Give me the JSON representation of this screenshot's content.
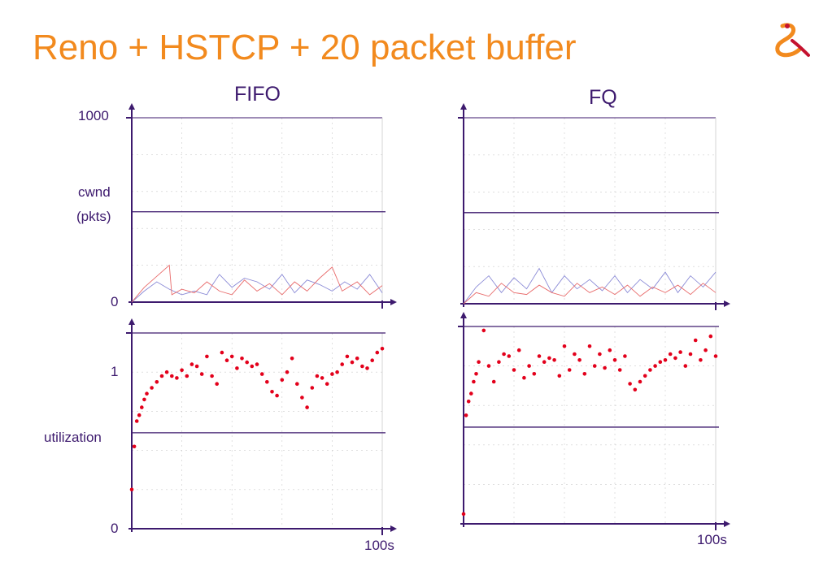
{
  "title": "Reno + HSTCP + 20 packet buffer",
  "colors": {
    "title": "#f28a1e",
    "axis": "#3d1a6e",
    "hstcp_cwnd": "#8a8ad6",
    "reno_cwnd": "#e86a6a",
    "utilization": "#e3001b",
    "grid": "#cccccc"
  },
  "labels": {
    "fifo": "FIFO",
    "fq": "FQ",
    "cwnd_top": "1000",
    "cwnd_zero": "0",
    "cwnd_axis": "cwnd",
    "cwnd_unit": "(pkts)",
    "util_one": "1",
    "util_zero": "0",
    "util_axis": "utilization",
    "time_end_left": "100s",
    "time_end_right": "100s"
  },
  "chart_data": [
    {
      "id": "fifo-cwnd",
      "type": "line",
      "title": "FIFO",
      "ylabel": "cwnd (pkts)",
      "xlim": [
        0,
        100
      ],
      "ylim": [
        0,
        1000
      ],
      "grid": true,
      "reference_line": 490,
      "series": [
        {
          "x": [
            0,
            5,
            10,
            15,
            20,
            25,
            30,
            32,
            35,
            40,
            45,
            50,
            55,
            60,
            65,
            70,
            75,
            80,
            85,
            90,
            95,
            100
          ],
          "y": [
            0,
            60,
            110,
            70,
            40,
            60,
            40,
            90,
            150,
            80,
            130,
            110,
            70,
            150,
            50,
            120,
            95,
            60,
            110,
            70,
            150,
            50
          ]
        },
        {
          "x": [
            0,
            5,
            10,
            15,
            16,
            20,
            25,
            30,
            35,
            40,
            45,
            50,
            55,
            60,
            65,
            70,
            75,
            80,
            84,
            90,
            95,
            100
          ],
          "y": [
            0,
            80,
            140,
            200,
            40,
            70,
            50,
            110,
            60,
            40,
            120,
            60,
            100,
            40,
            110,
            60,
            130,
            190,
            60,
            110,
            40,
            90
          ]
        }
      ]
    },
    {
      "id": "fq-cwnd",
      "type": "line",
      "title": "FQ",
      "ylabel": "cwnd (pkts)",
      "xlim": [
        0,
        100
      ],
      "ylim": [
        0,
        1000
      ],
      "grid": true,
      "reference_line": 490,
      "series": [
        {
          "x": [
            0,
            5,
            10,
            15,
            20,
            25,
            30,
            35,
            40,
            45,
            50,
            55,
            60,
            65,
            70,
            75,
            80,
            85,
            90,
            95,
            100
          ],
          "y": [
            0,
            90,
            150,
            60,
            140,
            80,
            190,
            60,
            150,
            80,
            130,
            70,
            150,
            60,
            130,
            80,
            170,
            60,
            150,
            90,
            170
          ]
        },
        {
          "x": [
            0,
            5,
            10,
            15,
            20,
            25,
            30,
            35,
            40,
            45,
            50,
            55,
            60,
            65,
            70,
            75,
            80,
            85,
            90,
            95,
            100
          ],
          "y": [
            0,
            60,
            40,
            110,
            60,
            50,
            100,
            60,
            40,
            110,
            60,
            90,
            50,
            100,
            40,
            90,
            60,
            100,
            50,
            110,
            60
          ]
        }
      ]
    },
    {
      "id": "fifo-util",
      "type": "scatter",
      "ylabel": "utilization",
      "xlim": [
        0,
        100
      ],
      "ylim": [
        0,
        1
      ],
      "grid": true,
      "reference_lines": [
        1,
        0.49
      ],
      "series": [
        {
          "x": [
            0,
            1,
            2,
            3,
            4,
            5,
            6,
            8,
            10,
            12,
            14,
            16,
            18,
            20,
            22,
            24,
            26,
            28,
            30,
            32,
            34,
            36,
            38,
            40,
            42,
            44,
            46,
            48,
            50,
            52,
            54,
            56,
            58,
            60,
            62,
            64,
            66,
            68,
            70,
            72,
            74,
            76,
            78,
            80,
            82,
            84,
            86,
            88,
            90,
            92,
            94,
            96,
            98,
            100
          ],
          "y": [
            0.2,
            0.42,
            0.55,
            0.58,
            0.62,
            0.66,
            0.69,
            0.72,
            0.75,
            0.78,
            0.8,
            0.78,
            0.77,
            0.81,
            0.78,
            0.84,
            0.83,
            0.79,
            0.88,
            0.78,
            0.74,
            0.9,
            0.86,
            0.88,
            0.82,
            0.87,
            0.85,
            0.83,
            0.84,
            0.79,
            0.75,
            0.7,
            0.68,
            0.76,
            0.8,
            0.87,
            0.74,
            0.67,
            0.62,
            0.72,
            0.78,
            0.77,
            0.74,
            0.79,
            0.8,
            0.84,
            0.88,
            0.85,
            0.87,
            0.83,
            0.82,
            0.86,
            0.9,
            0.92
          ]
        }
      ]
    },
    {
      "id": "fq-util",
      "type": "scatter",
      "ylabel": "utilization",
      "xlim": [
        0,
        100
      ],
      "ylim": [
        0,
        1
      ],
      "grid": true,
      "reference_lines": [
        1,
        0.49
      ],
      "series": [
        {
          "x": [
            0,
            1,
            2,
            3,
            4,
            5,
            6,
            8,
            10,
            12,
            14,
            16,
            18,
            20,
            22,
            24,
            26,
            28,
            30,
            32,
            34,
            36,
            38,
            40,
            42,
            44,
            46,
            48,
            50,
            52,
            54,
            56,
            58,
            60,
            62,
            64,
            66,
            68,
            70,
            72,
            74,
            76,
            78,
            80,
            82,
            84,
            86,
            88,
            90,
            92,
            94,
            96,
            98,
            100
          ],
          "y": [
            0.05,
            0.55,
            0.62,
            0.66,
            0.72,
            0.76,
            0.82,
            0.98,
            0.8,
            0.72,
            0.82,
            0.86,
            0.85,
            0.78,
            0.88,
            0.74,
            0.8,
            0.76,
            0.85,
            0.82,
            0.84,
            0.83,
            0.75,
            0.9,
            0.78,
            0.86,
            0.83,
            0.76,
            0.9,
            0.8,
            0.86,
            0.79,
            0.88,
            0.83,
            0.78,
            0.85,
            0.71,
            0.68,
            0.72,
            0.75,
            0.78,
            0.8,
            0.82,
            0.83,
            0.86,
            0.84,
            0.87,
            0.8,
            0.86,
            0.93,
            0.83,
            0.88,
            0.95,
            0.85
          ]
        }
      ]
    }
  ]
}
